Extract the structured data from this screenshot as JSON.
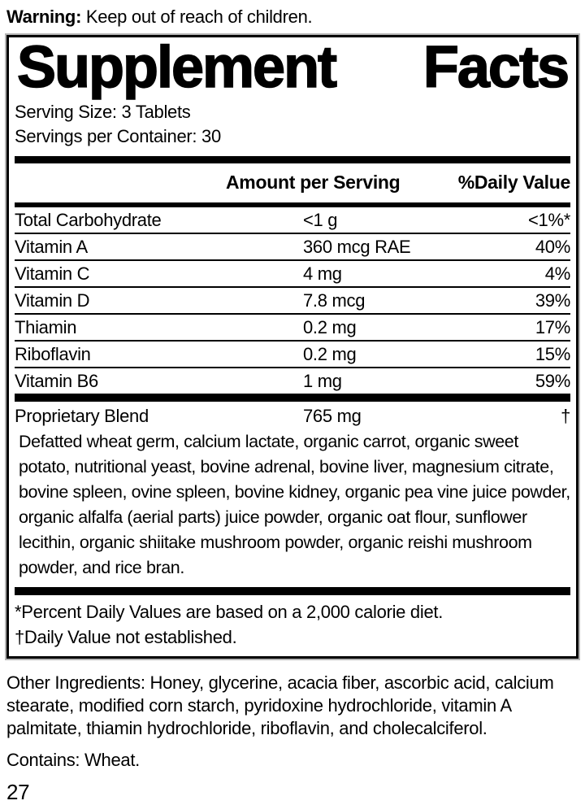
{
  "warning": {
    "label": "Warning:",
    "text": " Keep out of reach of children."
  },
  "panel": {
    "title_left": "Supplement",
    "title_right": "Facts",
    "serving_size": "Serving Size: 3 Tablets",
    "servings_per_container": "Servings per Container: 30",
    "columns": {
      "amount": "Amount per Serving",
      "dv": "%Daily Value"
    },
    "rows": [
      {
        "name": "Total Carbohydrate",
        "amount": "<1 g",
        "dv": "<1%*"
      },
      {
        "name": "Vitamin A",
        "amount": "360 mcg RAE",
        "dv": "40%"
      },
      {
        "name": "Vitamin C",
        "amount": "4 mg",
        "dv": "4%"
      },
      {
        "name": "Vitamin D",
        "amount": "7.8 mcg",
        "dv": "39%"
      },
      {
        "name": "Thiamin",
        "amount": "0.2 mg",
        "dv": "17%"
      },
      {
        "name": "Riboflavin",
        "amount": "0.2 mg",
        "dv": "15%"
      },
      {
        "name": "Vitamin B6",
        "amount": "1 mg",
        "dv": "59%"
      }
    ],
    "blend": {
      "name": "Proprietary Blend",
      "amount": "765 mg",
      "dv": "†",
      "ingredients": "Defatted wheat germ, calcium lactate, organic carrot, organic sweet potato, nutritional yeast, bovine adrenal, bovine liver, magnesium citrate, bovine spleen, ovine spleen, bovine kidney, organic pea vine juice powder, organic alfalfa (aerial parts) juice powder, organic oat flour, sunflower lecithin, organic shiitake mushroom powder, organic reishi mushroom powder, and rice bran."
    },
    "footnotes": [
      "*Percent Daily Values are based on a 2,000 calorie diet.",
      "†Daily Value not established."
    ]
  },
  "other_ingredients": "Other Ingredients: Honey, glycerine, acacia fiber, ascorbic acid, calcium stearate,  modified corn starch, pyridoxine hydrochloride, vitamin A palmitate, thiamin hydrochloride, riboflavin, and cholecalciferol.",
  "contains": "Contains: Wheat.",
  "page_number": "27"
}
